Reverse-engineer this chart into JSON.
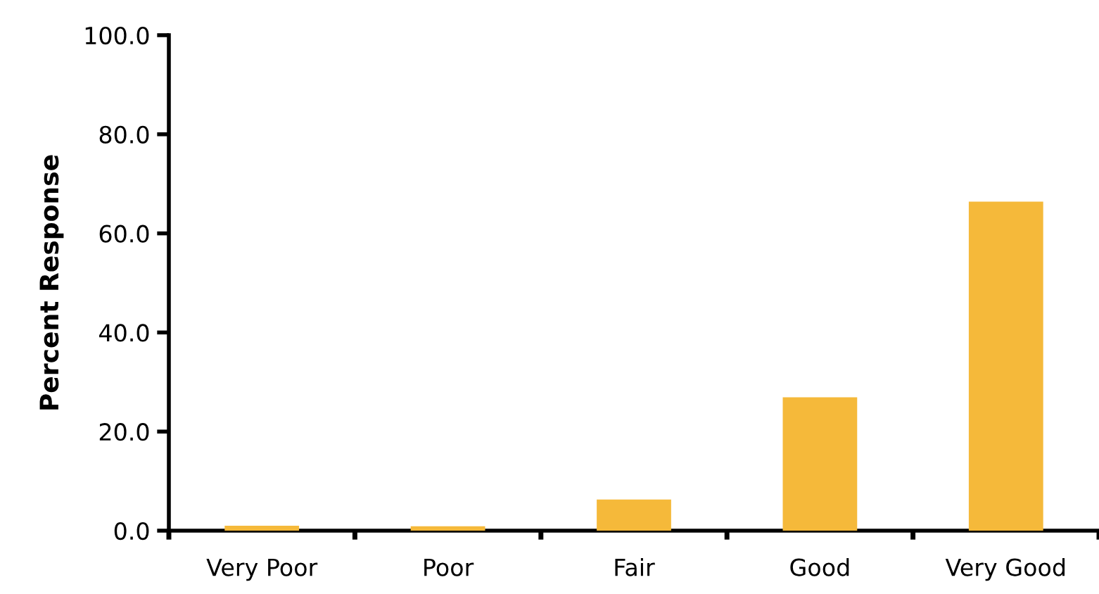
{
  "chart_data": {
    "type": "bar",
    "ylabel": "Percent Response",
    "categories": [
      "Very Poor",
      "Poor",
      "Fair",
      "Good",
      "Very Good"
    ],
    "values": [
      1.0,
      0.9,
      6.3,
      26.9,
      66.4
    ],
    "color": "#f5b93a",
    "ylim": [
      0,
      100
    ],
    "yticks": [
      {
        "value": 0,
        "label": "0.0"
      },
      {
        "value": 20,
        "label": "20.0"
      },
      {
        "value": 40,
        "label": "40.0"
      },
      {
        "value": 60,
        "label": "60.0"
      },
      {
        "value": 80,
        "label": "80.0"
      },
      {
        "value": 100,
        "label": "100.0"
      }
    ],
    "grid": false
  }
}
